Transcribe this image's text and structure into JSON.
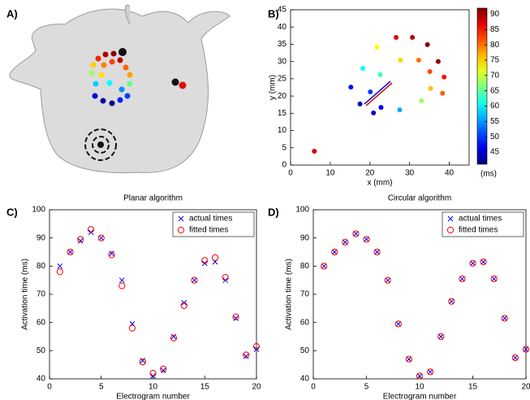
{
  "image_panel": {
    "label": "A)"
  },
  "chart_data": [
    {
      "type": "scatter",
      "label": "B)",
      "x_label": "x (mm)",
      "y_label": "y (mm)",
      "x": [
        17.5,
        20.9,
        22.8,
        15.2,
        20.1,
        27.5,
        18.2,
        22.6,
        33,
        21.8,
        27.7,
        35.3,
        32.3,
        38.3,
        35.1,
        26.6,
        30.7,
        37.2,
        34.5,
        38.7,
        6
      ],
      "y": [
        17.7,
        15.1,
        16.7,
        22.6,
        21.2,
        16,
        28,
        26.2,
        18.6,
        34.2,
        30.4,
        22.2,
        30.4,
        20.8,
        27.1,
        37,
        37,
        30,
        34.9,
        25.5,
        4
      ],
      "color_values": [
        43,
        45,
        47,
        48,
        50,
        56,
        60,
        63,
        68,
        73,
        75,
        76,
        80,
        81,
        82,
        87,
        89,
        91,
        92,
        85,
        88
      ],
      "colormap": "jet",
      "clim": [
        41,
        92
      ],
      "cticks": [
        45,
        50,
        55,
        60,
        65,
        70,
        75,
        80,
        85,
        90
      ],
      "colorbar_label": "(ms)",
      "xlim": [
        0,
        45
      ],
      "xticks": [
        0,
        10,
        20,
        30,
        40
      ],
      "ylim": [
        0,
        45
      ],
      "yticks": [
        0,
        5,
        10,
        15,
        20,
        25,
        30,
        35,
        40,
        45
      ]
    },
    {
      "type": "scatter",
      "label": "C)",
      "title": "Planar algorithm",
      "x_label": "Electrogram number",
      "y_label": "Activation time (ms)",
      "x": [
        1,
        2,
        3,
        4,
        5,
        6,
        7,
        8,
        9,
        10,
        11,
        12,
        13,
        14,
        15,
        16,
        17,
        18,
        19,
        20
      ],
      "series": [
        {
          "name": "actual times",
          "color": "#0000ff",
          "marker": "x",
          "values": [
            80,
            85,
            89,
            92,
            90,
            84.5,
            75,
            59.5,
            46.5,
            41,
            43,
            55,
            67,
            75,
            81,
            81.5,
            75,
            61.5,
            48,
            50.5
          ]
        },
        {
          "name": "fitted times",
          "color": "#ff0000",
          "marker": "o",
          "values": [
            78,
            85,
            89.5,
            93,
            90,
            84,
            73,
            58,
            46,
            42,
            43.5,
            54.5,
            66,
            75,
            82,
            83,
            76,
            62,
            48.5,
            51.5
          ]
        }
      ],
      "legend": "upper right",
      "xlim": [
        0,
        20
      ],
      "xticks": [
        0,
        5,
        10,
        15,
        20
      ],
      "ylim": [
        40,
        100
      ],
      "yticks": [
        40,
        50,
        60,
        70,
        80,
        90,
        100
      ]
    },
    {
      "type": "scatter",
      "label": "D)",
      "title": "Circular algorithm",
      "x_label": "Electrogram number",
      "y_label": "Activation time (ms)",
      "x": [
        1,
        2,
        3,
        4,
        5,
        6,
        7,
        8,
        9,
        10,
        11,
        12,
        13,
        14,
        15,
        16,
        17,
        18,
        19,
        20
      ],
      "series": [
        {
          "name": "actual times",
          "color": "#0000ff",
          "marker": "x",
          "values": [
            80,
            85,
            88.5,
            91.5,
            89.5,
            85,
            75,
            59.5,
            47,
            41,
            42.5,
            55,
            67.5,
            75.5,
            81,
            81.5,
            75.5,
            61.5,
            47.5,
            50.5
          ]
        },
        {
          "name": "fitted times",
          "color": "#ff0000",
          "marker": "o",
          "values": [
            80,
            85,
            88.5,
            91.5,
            89.5,
            85,
            75,
            59.5,
            47,
            41,
            42.5,
            55,
            67.5,
            75.5,
            81,
            81.5,
            75.5,
            61.5,
            47.5,
            50.5
          ]
        }
      ],
      "legend": "upper right",
      "xlim": [
        0,
        20
      ],
      "xticks": [
        0,
        5,
        10,
        15,
        20
      ],
      "ylim": [
        40,
        100
      ],
      "yticks": [
        40,
        50,
        60,
        70,
        80,
        90,
        100
      ]
    }
  ]
}
